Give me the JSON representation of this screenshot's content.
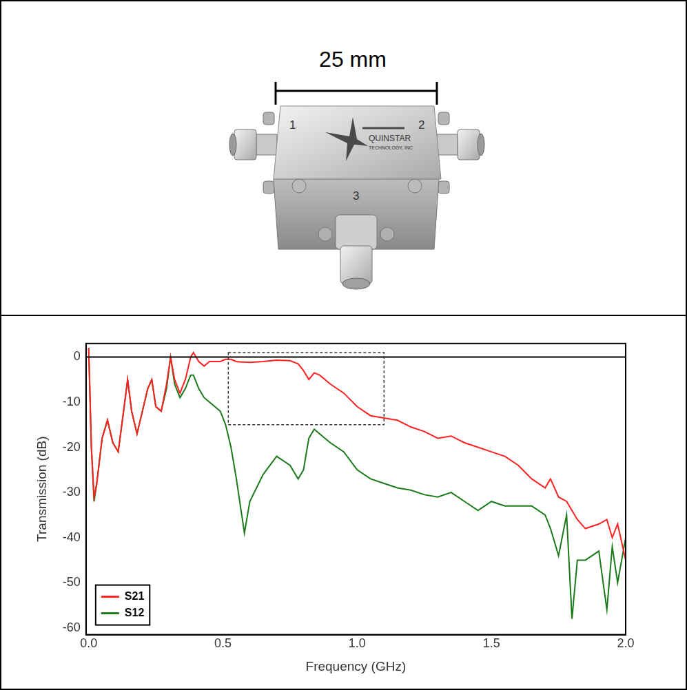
{
  "photo": {
    "scale_bar_label": "25 mm",
    "port_labels": [
      "1",
      "2",
      "3"
    ],
    "brand_lines": [
      "QUINSTAR",
      "TECHNOLOGY, INC"
    ]
  },
  "chart_data": {
    "type": "line",
    "x_label": "Frequency (GHz)",
    "y_label": "Transmission (dB)",
    "x": [
      0,
      0.01,
      0.02,
      0.03,
      0.05,
      0.07,
      0.09,
      0.11,
      0.13,
      0.145,
      0.16,
      0.18,
      0.2,
      0.22,
      0.235,
      0.25,
      0.27,
      0.29,
      0.305,
      0.32,
      0.34,
      0.36,
      0.38,
      0.39,
      0.41,
      0.43,
      0.45,
      0.47,
      0.49,
      0.51,
      0.53,
      0.55,
      0.57,
      0.58,
      0.6,
      0.65,
      0.7,
      0.75,
      0.78,
      0.8,
      0.82,
      0.84,
      0.86,
      0.9,
      0.95,
      1.0,
      1.05,
      1.1,
      1.15,
      1.2,
      1.25,
      1.3,
      1.35,
      1.4,
      1.45,
      1.5,
      1.55,
      1.6,
      1.65,
      1.7,
      1.72,
      1.75,
      1.78,
      1.8,
      1.82,
      1.85,
      1.9,
      1.93,
      1.95,
      1.97,
      2.0
    ],
    "series": [
      {
        "name": "S21",
        "color": "#ff2020",
        "values": [
          2,
          -20,
          -31,
          -28,
          -18,
          -14,
          -19,
          -21,
          -12,
          -5,
          -12,
          -17,
          -12,
          -7,
          -5,
          -11,
          -12,
          -6,
          0,
          -5,
          -8,
          -5,
          0,
          1,
          -1,
          -2,
          -1,
          -1,
          -1,
          -0.5,
          -0.5,
          -1,
          -1.1,
          -1.1,
          -1.2,
          -1,
          -0.7,
          -0.8,
          -1.5,
          -3,
          -5,
          -3.5,
          -4,
          -6,
          -8,
          -11,
          -13,
          -13.5,
          -14,
          -15.5,
          -16.5,
          -18,
          -17.5,
          -19,
          -20,
          -21,
          -22,
          -24,
          -27,
          -29,
          -27,
          -31,
          -32,
          -34,
          -36,
          -38,
          -37,
          -36,
          -40,
          -37,
          -45
        ]
      },
      {
        "name": "S12",
        "color": "#1a7a1a",
        "values": [
          2,
          -20,
          -32,
          -28,
          -18,
          -14,
          -19,
          -21,
          -12,
          -5,
          -12,
          -17,
          -12,
          -7,
          -5,
          -11,
          -12,
          -7,
          0,
          -6,
          -9,
          -7,
          -4,
          -4,
          -7,
          -9,
          -10,
          -11,
          -12,
          -15,
          -20,
          -27,
          -35,
          -39,
          -32,
          -26,
          -22,
          -24,
          -27,
          -25,
          -18,
          -16,
          -17,
          -19,
          -21,
          -25,
          -27,
          -28,
          -29,
          -29.5,
          -30.5,
          -31,
          -30,
          -32,
          -34,
          -32,
          -33,
          -33,
          -33,
          -35,
          -38,
          -44,
          -35,
          -58,
          -45,
          -45,
          -43,
          -56,
          -42,
          -50,
          -40
        ]
      }
    ],
    "xlim": [
      -0.01,
      2.0
    ],
    "xticks": [
      {
        "value": 0,
        "label": "0.0"
      },
      0.5,
      {
        "value": 1,
        "label": "1.0"
      },
      1.5,
      {
        "value": 2,
        "label": "2.0"
      }
    ],
    "ylim": [
      -61.5,
      3
    ],
    "yticks": [
      -60,
      -50,
      -40,
      -30,
      -20,
      -10,
      0
    ],
    "grid": false,
    "legend": "lower left",
    "reference_line": 0,
    "highlight_box": {
      "x": [
        0.52,
        1.1
      ],
      "y": [
        -15,
        1
      ]
    }
  }
}
